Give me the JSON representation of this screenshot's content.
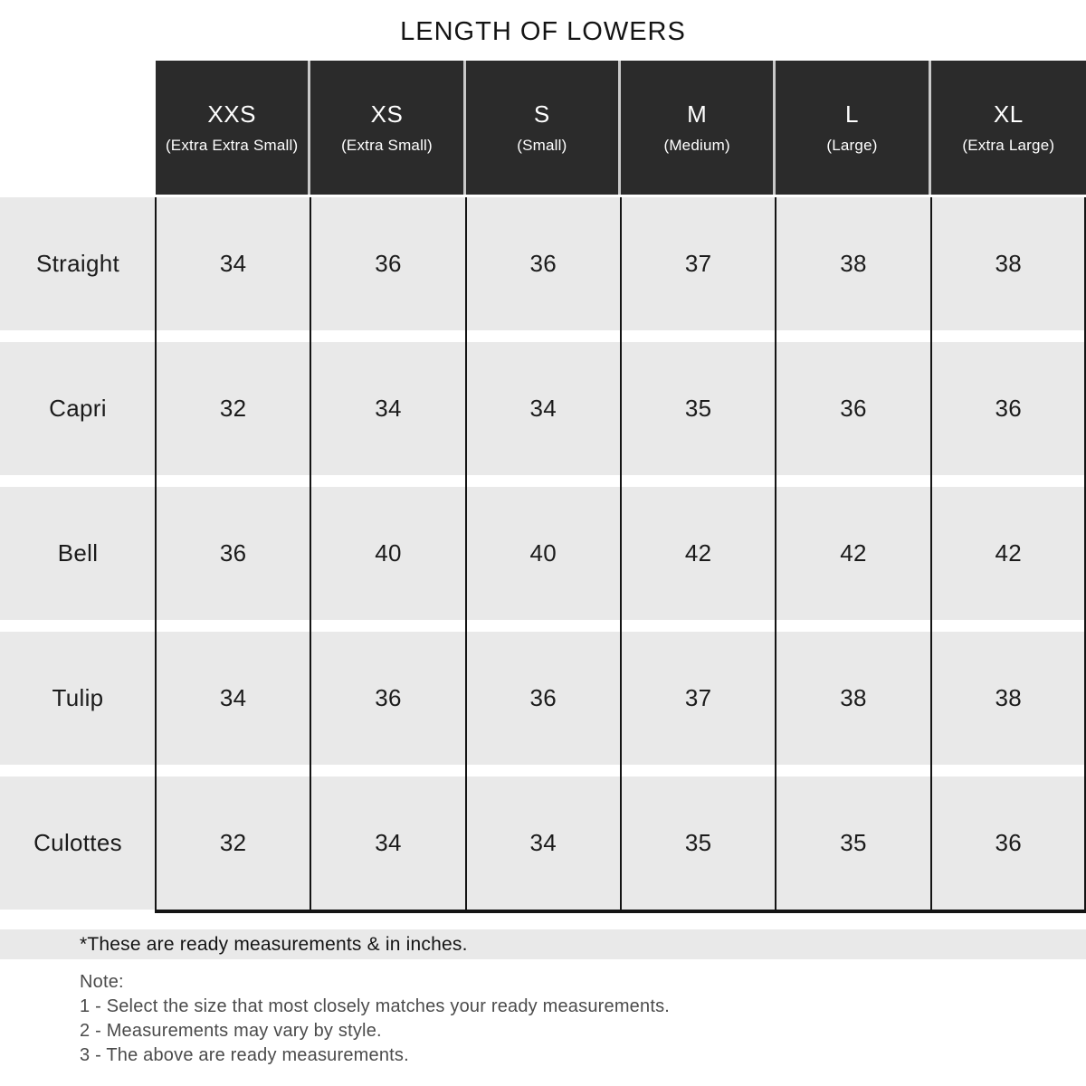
{
  "title": "LENGTH OF LOWERS",
  "chart_data": {
    "type": "table",
    "title": "LENGTH OF LOWERS",
    "units": "inches",
    "columns": [
      {
        "abbr": "XXS",
        "full": "(Extra Extra Small)"
      },
      {
        "abbr": "XS",
        "full": "(Extra Small)"
      },
      {
        "abbr": "S",
        "full": "(Small)"
      },
      {
        "abbr": "M",
        "full": "(Medium)"
      },
      {
        "abbr": "L",
        "full": "(Large)"
      },
      {
        "abbr": "XL",
        "full": "(Extra Large)"
      }
    ],
    "rows": [
      {
        "label": "Straight",
        "values": [
          34,
          36,
          36,
          37,
          38,
          38
        ]
      },
      {
        "label": "Capri",
        "values": [
          32,
          34,
          34,
          35,
          36,
          36
        ]
      },
      {
        "label": "Bell",
        "values": [
          36,
          40,
          40,
          42,
          42,
          42
        ]
      },
      {
        "label": "Tulip",
        "values": [
          34,
          36,
          36,
          37,
          38,
          38
        ]
      },
      {
        "label": "Culottes",
        "values": [
          32,
          34,
          34,
          35,
          35,
          36
        ]
      }
    ]
  },
  "footnote": "*These are ready measurements & in inches.",
  "note": {
    "heading": "Note:",
    "items": [
      "1 - Select the size that most closely matches your ready measurements.",
      "2 - Measurements may vary by style.",
      "3 - The above are ready measurements."
    ]
  },
  "colors": {
    "header_bg": "#2b2b2b",
    "header_text": "#ffffff",
    "row_bg": "#e9e9e9",
    "border": "#141414",
    "note_text": "#4b4b4b"
  }
}
